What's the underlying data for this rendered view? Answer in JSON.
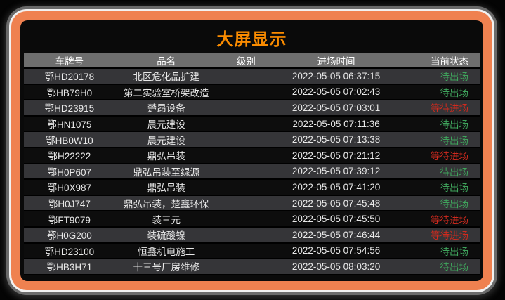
{
  "title": "大屏显示",
  "colors": {
    "frame_orange": "#EF8150",
    "title_orange": "#FB8C00",
    "header_bg": "#6E6E6E",
    "row_light": "#353538",
    "row_dark": "#0D0D0D",
    "status_green": "#3FA45C",
    "status_red": "#D02A1E"
  },
  "table": {
    "columns": [
      "车牌号",
      "品名",
      "级别",
      "进场时间",
      "当前状态"
    ],
    "rows": [
      {
        "plate": "鄂HD20178",
        "name": "北区危化品扩建",
        "level": "",
        "time": "2022-05-05 06:37:15",
        "status": "待出场",
        "status_color": "green"
      },
      {
        "plate": "鄂HB79H0",
        "name": "第二实验室桥架改造",
        "level": "",
        "time": "2022-05-05 07:02:43",
        "status": "待出场",
        "status_color": "green"
      },
      {
        "plate": "鄂HD23915",
        "name": "楚昂设备",
        "level": "",
        "time": "2022-05-05 07:03:01",
        "status": "等待进场",
        "status_color": "red"
      },
      {
        "plate": "鄂HN1075",
        "name": "晨元建设",
        "level": "",
        "time": "2022-05-05 07:11:36",
        "status": "待出场",
        "status_color": "green"
      },
      {
        "plate": "鄂HB0W10",
        "name": "晨元建设",
        "level": "",
        "time": "2022-05-05 07:13:38",
        "status": "待出场",
        "status_color": "green"
      },
      {
        "plate": "鄂H22222",
        "name": "鼎弘吊装",
        "level": "",
        "time": "2022-05-05 07:21:12",
        "status": "等待进场",
        "status_color": "red"
      },
      {
        "plate": "鄂H0P607",
        "name": "鼎弘吊装至绿源",
        "level": "",
        "time": "2022-05-05 07:39:12",
        "status": "待出场",
        "status_color": "green"
      },
      {
        "plate": "鄂H0X987",
        "name": "鼎弘吊装",
        "level": "",
        "time": "2022-05-05 07:41:20",
        "status": "待出场",
        "status_color": "green"
      },
      {
        "plate": "鄂H0J747",
        "name": "鼎弘吊装，楚鑫环保",
        "level": "",
        "time": "2022-05-05 07:45:48",
        "status": "待出场",
        "status_color": "green"
      },
      {
        "plate": "鄂FT9079",
        "name": "装三元",
        "level": "",
        "time": "2022-05-05 07:45:50",
        "status": "等待进场",
        "status_color": "red"
      },
      {
        "plate": "鄂H0G200",
        "name": "装硫酸镍",
        "level": "",
        "time": "2022-05-05 07:46:44",
        "status": "等待进场",
        "status_color": "red"
      },
      {
        "plate": "鄂HD23100",
        "name": "恒鑫机电施工",
        "level": "",
        "time": "2022-05-05 07:54:56",
        "status": "待出场",
        "status_color": "green"
      },
      {
        "plate": "鄂HB3H71",
        "name": "十三号厂房维修",
        "level": "",
        "time": "2022-05-05 08:03:20",
        "status": "待出场",
        "status_color": "green"
      }
    ]
  }
}
